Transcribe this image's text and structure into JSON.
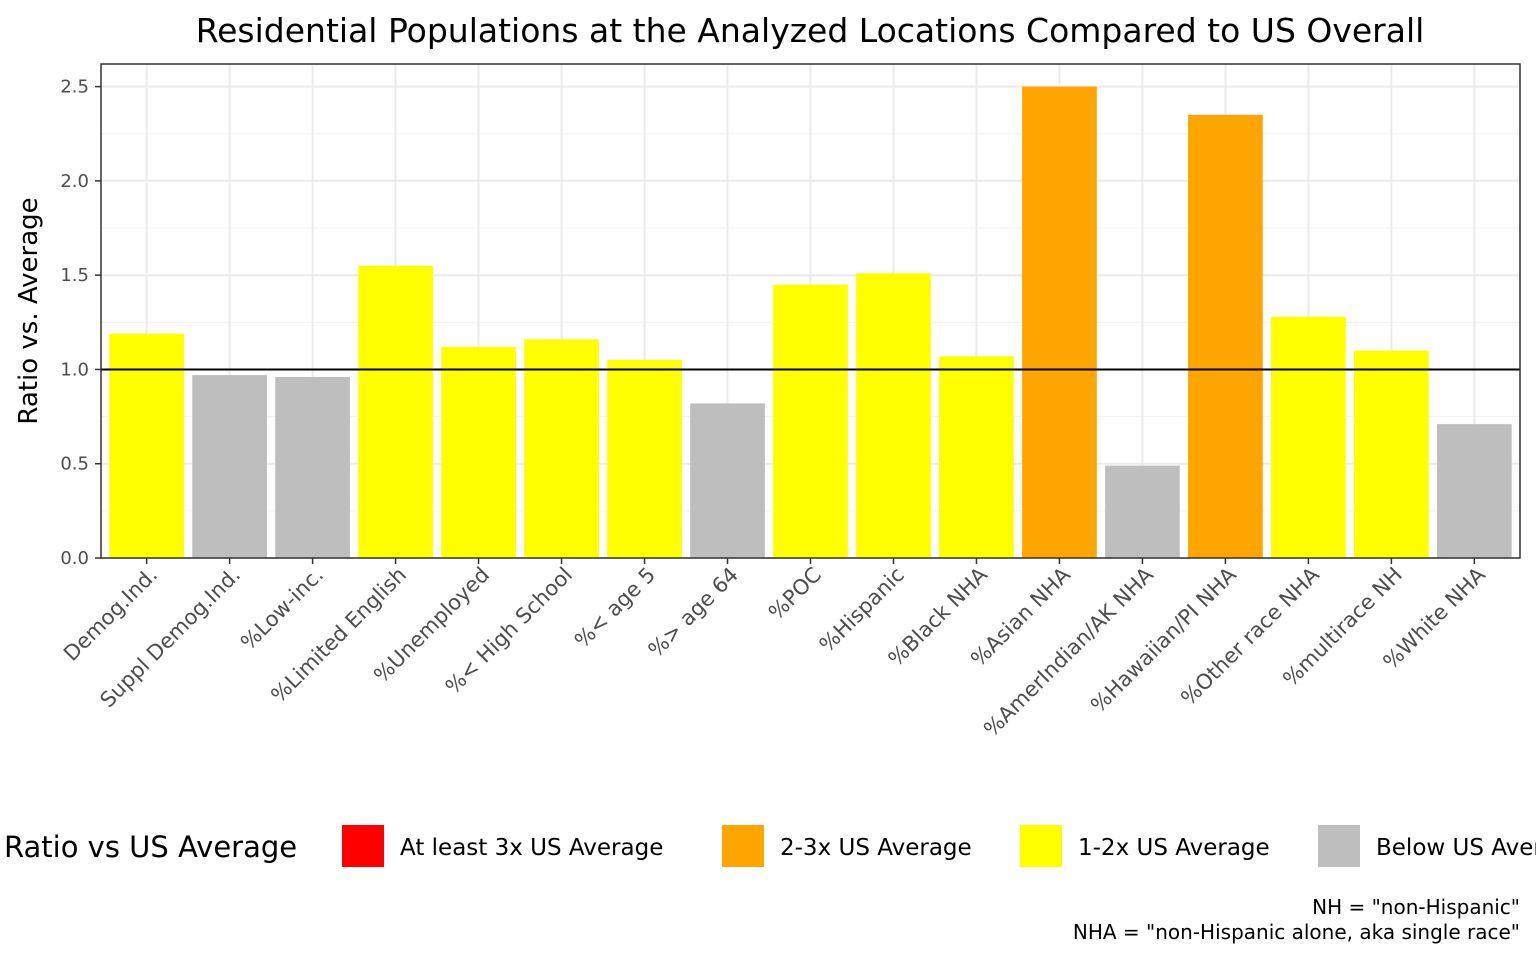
{
  "chart_data": {
    "type": "bar",
    "title": "Residential Populations at the Analyzed Locations Compared to US Overall",
    "xlabel": "",
    "ylabel": "Ratio vs. Average",
    "ylim": [
      0,
      2.62
    ],
    "yticks": [
      "0.0",
      "0.5",
      "1.0",
      "1.5",
      "2.0",
      "2.5"
    ],
    "reference_line": 1.0,
    "grid": true,
    "categories": [
      "Demog.Ind.",
      "Suppl Demog.Ind.",
      "%Low-inc.",
      "%Limited English",
      "%Unemployed",
      "%< High School",
      "%< age 5",
      "%> age 64",
      "%POC",
      "%Hispanic",
      "%Black NHA",
      "%Asian NHA",
      "%AmerIndian/AK NHA",
      "%Hawaiian/PI NHA",
      "%Other race NHA",
      "%multirace NH",
      "%White NHA"
    ],
    "values": [
      1.19,
      0.97,
      0.96,
      1.55,
      1.12,
      1.16,
      1.05,
      0.82,
      1.45,
      1.51,
      1.07,
      2.5,
      0.49,
      2.35,
      1.28,
      1.1,
      0.71
    ],
    "bar_groups": [
      "1-2x US Average",
      "Below US Average",
      "Below US Average",
      "1-2x US Average",
      "1-2x US Average",
      "1-2x US Average",
      "1-2x US Average",
      "Below US Average",
      "1-2x US Average",
      "1-2x US Average",
      "1-2x US Average",
      "2-3x US Average",
      "Below US Average",
      "2-3x US Average",
      "1-2x US Average",
      "1-2x US Average",
      "Below US Average"
    ],
    "legend": {
      "title": "Ratio vs US Average",
      "placement": "bottom",
      "entries": [
        {
          "label": "At least 3x US Average",
          "color": "#ff0000"
        },
        {
          "label": "2-3x US Average",
          "color": "#ffa500"
        },
        {
          "label": "1-2x US Average",
          "color": "#ffff00"
        },
        {
          "label": "Below US Average",
          "color": "#bebebe"
        }
      ]
    },
    "caption": [
      "NH = \"non-Hispanic\"",
      "NHA = \"non-Hispanic alone, aka single race\""
    ]
  }
}
